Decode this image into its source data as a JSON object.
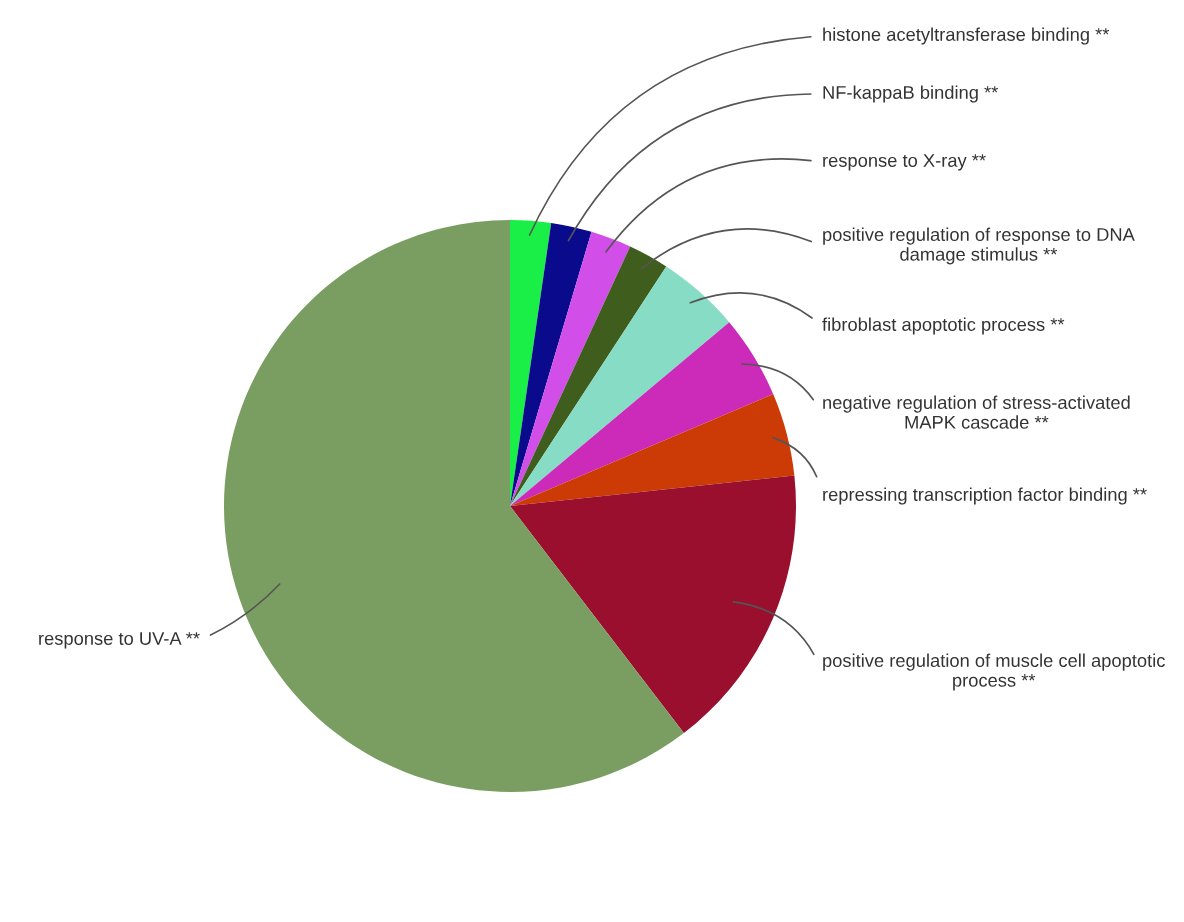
{
  "chart_data": {
    "type": "pie",
    "categories": [
      "histone acetyltransferase binding **",
      "NF-kappaB binding **",
      "response to X-ray **",
      "positive regulation of response to DNA damage stimulus **",
      "fibroblast apoptotic process **",
      "negative regulation of stress-activated MAPK cascade **",
      "repressing transcription factor binding **",
      "positive regulation of muscle cell apoptotic process **",
      "response to UV-A **"
    ],
    "values": [
      2.3,
      2.3,
      2.3,
      2.3,
      4.7,
      4.7,
      4.7,
      16.3,
      60.4
    ],
    "colors": [
      "#1aef47",
      "#0a0a8c",
      "#d24ee8",
      "#3f5e1e",
      "#86dcc4",
      "#cc2ab8",
      "#cc3b05",
      "#9a0f2e",
      "#7a9e62"
    ]
  }
}
